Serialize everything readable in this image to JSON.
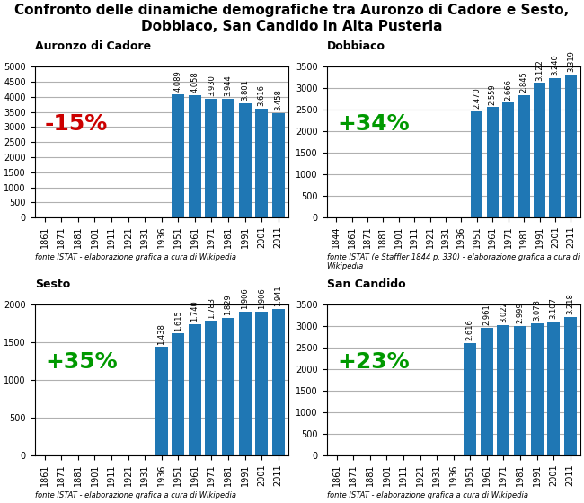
{
  "title": "Confronto delle dinamiche demografiche tra Auronzo di Cadore e Sesto,\nDobbiaco, San Candido in Alta Pusteria",
  "chart_data": [
    {
      "type": "bar",
      "title": "Auronzo di Cadore",
      "categories": [
        "1861",
        "1871",
        "1881",
        "1901",
        "1911",
        "1921",
        "1931",
        "1936",
        "1951",
        "1961",
        "1971",
        "1981",
        "1991",
        "2001",
        "2011"
      ],
      "values": [
        null,
        null,
        null,
        null,
        null,
        null,
        null,
        null,
        4089,
        4058,
        3930,
        3944,
        3801,
        3616,
        3458
      ],
      "value_labels": [
        null,
        null,
        null,
        null,
        null,
        null,
        null,
        null,
        "4.089",
        "4.058",
        "3.930",
        "3.944",
        "3.801",
        "3.616",
        "3.458"
      ],
      "data_labels": true,
      "ylim": [
        0,
        5000
      ],
      "yticks": [
        0,
        500,
        1000,
        1500,
        2000,
        2500,
        3000,
        3500,
        4000,
        4500,
        5000
      ],
      "grid": true,
      "annotations": [
        {
          "text": "-15%",
          "color": "#cc0000"
        }
      ],
      "source": "fonte ISTAT - elaborazione grafica a cura di Wikipedia"
    },
    {
      "type": "bar",
      "title": "Dobbiaco",
      "categories": [
        "1844",
        "1861",
        "1871",
        "1881",
        "1901",
        "1911",
        "1921",
        "1931",
        "1936",
        "1951",
        "1961",
        "1971",
        "1981",
        "1991",
        "2001",
        "2011"
      ],
      "values": [
        null,
        null,
        null,
        null,
        null,
        null,
        null,
        null,
        null,
        2470,
        2559,
        2666,
        2845,
        3122,
        3240,
        3319
      ],
      "value_labels": [
        null,
        null,
        null,
        null,
        null,
        null,
        null,
        null,
        null,
        "2.470",
        "2.559",
        "2.666",
        "2.845",
        "3.122",
        "3.240",
        "3.319"
      ],
      "data_labels": true,
      "ylim": [
        0,
        3500
      ],
      "yticks": [
        0,
        500,
        1000,
        1500,
        2000,
        2500,
        3000,
        3500
      ],
      "grid": true,
      "annotations": [
        {
          "text": "+34%",
          "color": "#009900"
        }
      ],
      "source": "fonte ISTAT (e Staffler 1844 p. 330) - elaborazione grafica a cura di Wikipedia"
    },
    {
      "type": "bar",
      "title": "Sesto",
      "categories": [
        "1861",
        "1871",
        "1881",
        "1901",
        "1911",
        "1921",
        "1931",
        "1936",
        "1951",
        "1961",
        "1971",
        "1981",
        "1991",
        "2001",
        "2011"
      ],
      "values": [
        null,
        null,
        null,
        null,
        null,
        null,
        null,
        1438,
        1615,
        1740,
        1783,
        1829,
        1906,
        1906,
        1941
      ],
      "value_labels": [
        null,
        null,
        null,
        null,
        null,
        null,
        null,
        "1.438",
        "1.615",
        "1.740",
        "1.783",
        "1.829",
        "1.906",
        "1.906",
        "1.941"
      ],
      "data_labels": true,
      "ylim": [
        0,
        2000
      ],
      "yticks": [
        0,
        500,
        1000,
        1500,
        2000
      ],
      "grid": true,
      "annotations": [
        {
          "text": "+35%",
          "color": "#009900"
        }
      ],
      "source": "fonte ISTAT - elaborazione grafica a cura di Wikipedia"
    },
    {
      "type": "bar",
      "title": "San Candido",
      "categories": [
        "1861",
        "1871",
        "1881",
        "1901",
        "1911",
        "1921",
        "1931",
        "1936",
        "1951",
        "1961",
        "1971",
        "1981",
        "1991",
        "2001",
        "2011"
      ],
      "values": [
        null,
        null,
        null,
        null,
        null,
        null,
        null,
        null,
        2616,
        2961,
        3022,
        2999,
        3073,
        3107,
        3218
      ],
      "value_labels": [
        null,
        null,
        null,
        null,
        null,
        null,
        null,
        null,
        "2.616",
        "2.961",
        "3.022",
        "2.999",
        "3.073",
        "3.107",
        "3.218"
      ],
      "data_labels": true,
      "ylim": [
        0,
        3500
      ],
      "yticks": [
        0,
        500,
        1000,
        1500,
        2000,
        2500,
        3000,
        3500
      ],
      "grid": true,
      "annotations": [
        {
          "text": "+23%",
          "color": "#009900"
        }
      ],
      "source": "fonte ISTAT - elaborazione grafica a cura di Wikipedia"
    }
  ]
}
